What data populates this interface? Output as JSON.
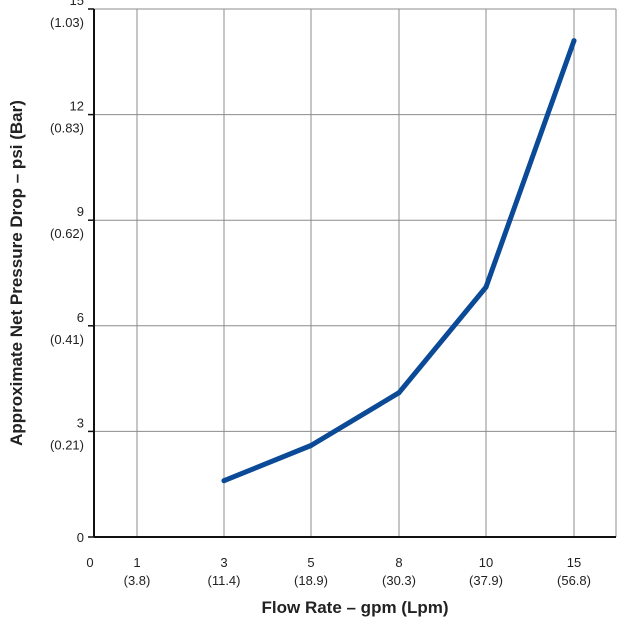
{
  "chart_data": {
    "type": "line",
    "title": "",
    "xlabel": "Flow Rate – gpm (Lpm)",
    "ylabel": "Approximate Net Pressure Drop – psi (Bar)",
    "x_ticks": [
      {
        "primary": "0",
        "secondary": ""
      },
      {
        "primary": "1",
        "secondary": "(3.8)"
      },
      {
        "primary": "3",
        "secondary": "(11.4)"
      },
      {
        "primary": "5",
        "secondary": "(18.9)"
      },
      {
        "primary": "8",
        "secondary": "(30.3)"
      },
      {
        "primary": "10",
        "secondary": "(37.9)"
      },
      {
        "primary": "15",
        "secondary": "(56.8)"
      }
    ],
    "y_ticks": [
      {
        "value": 0,
        "primary": "0",
        "secondary": ""
      },
      {
        "value": 3,
        "primary": "3",
        "secondary": "(0.21)"
      },
      {
        "value": 6,
        "primary": "6",
        "secondary": "(0.41)"
      },
      {
        "value": 9,
        "primary": "9",
        "secondary": "(0.62)"
      },
      {
        "value": 12,
        "primary": "12",
        "secondary": "(0.83)"
      },
      {
        "value": 15,
        "primary": "15",
        "secondary": "(1.03)"
      }
    ],
    "ylim": [
      0,
      15
    ],
    "grid": true,
    "series": [
      {
        "name": "",
        "color": "#0a4a96",
        "points": [
          {
            "x": 3,
            "y": 1.6
          },
          {
            "x": 5,
            "y": 2.6
          },
          {
            "x": 8,
            "y": 4.1
          },
          {
            "x": 10,
            "y": 7.1
          },
          {
            "x": 15,
            "y": 14.1
          }
        ]
      }
    ]
  }
}
